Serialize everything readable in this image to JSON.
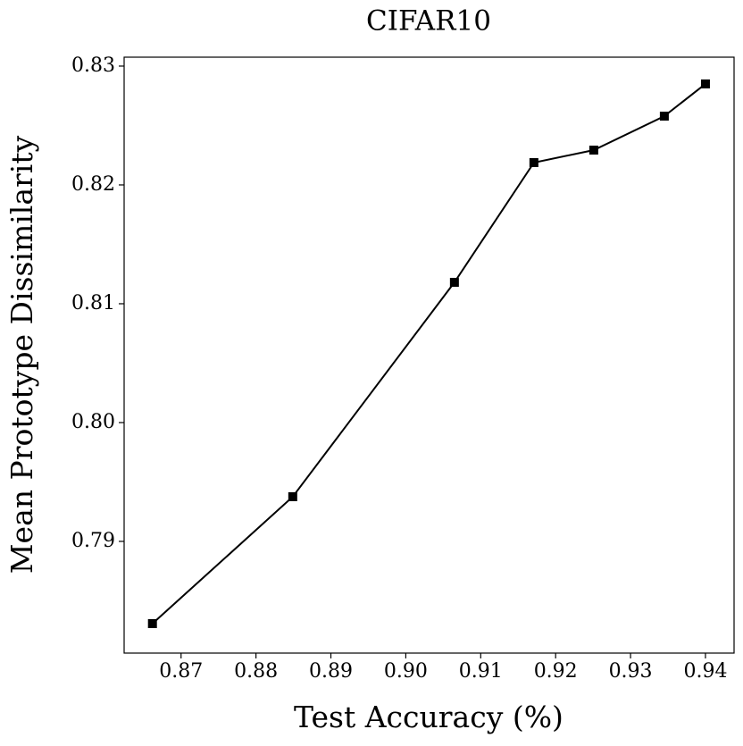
{
  "chart_data": {
    "type": "line",
    "title": "CIFAR10",
    "x_label": "Test Accuracy (%)",
    "y_label": "Mean Prototype Dissimilarity",
    "series": [
      {
        "color": "#000000",
        "x": [
          0.86618,
          0.88491,
          0.90649,
          0.9171,
          0.92509,
          0.93451,
          0.94
        ],
        "values": [
          0.78308,
          0.79376,
          0.8118,
          0.82188,
          0.82293,
          0.82579,
          0.8285
        ]
      }
    ],
    "xlim": [
      0.8624,
      0.94382
    ],
    "ylim": [
      0.7806,
      0.83075
    ],
    "xticks": [
      0.87,
      0.88,
      0.89,
      {
        "value": 0.9,
        "label": "0.90"
      },
      0.91,
      0.92,
      0.93,
      0.94
    ],
    "yticks": [
      0.79,
      {
        "value": 0.8,
        "label": "0.80"
      },
      0.81,
      0.82,
      0.83
    ]
  }
}
